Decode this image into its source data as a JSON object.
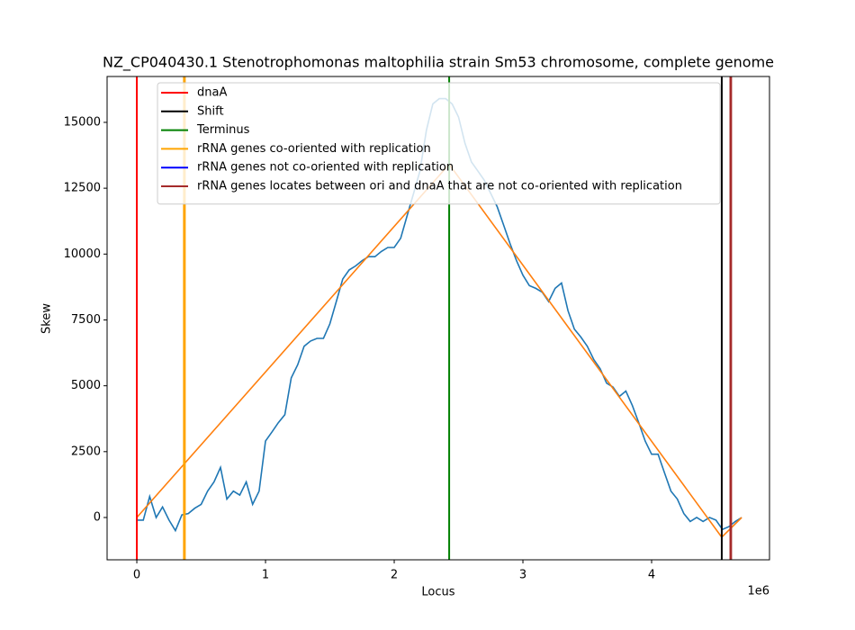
{
  "chart_data": {
    "type": "line",
    "title": "NZ_CP040430.1 Stenotrophomonas maltophilia strain Sm53 chromosome, complete genome",
    "xlabel": "Locus",
    "ylabel": "Skew",
    "x_offset_label": "1e6",
    "xlim": [
      -231000,
      4916000
    ],
    "ylim": [
      -1606,
      16741
    ],
    "xticks": [
      0,
      {
        "value": 1000000,
        "label": "1"
      },
      {
        "value": 2000000,
        "label": "2"
      },
      {
        "value": 3000000,
        "label": "3"
      },
      {
        "value": 4000000,
        "label": "4"
      }
    ],
    "yticks": [
      0,
      2500,
      5000,
      7500,
      10000,
      12500,
      15000
    ],
    "legend": "upper left",
    "lines": [
      {
        "color": "#1f77b4",
        "x": [
          0,
          50000,
          100000,
          150000,
          200000,
          250000,
          300000,
          350000,
          400000,
          450000,
          500000,
          550000,
          600000,
          650000,
          700000,
          750000,
          800000,
          850000,
          900000,
          950000,
          1000000,
          1050000,
          1100000,
          1150000,
          1200000,
          1250000,
          1300000,
          1350000,
          1400000,
          1450000,
          1500000,
          1550000,
          1600000,
          1650000,
          1700000,
          1750000,
          1800000,
          1850000,
          1900000,
          1950000,
          2000000,
          2050000,
          2100000,
          2150000,
          2200000,
          2250000,
          2300000,
          2350000,
          2400000,
          2450000,
          2500000,
          2550000,
          2600000,
          2650000,
          2700000,
          2750000,
          2800000,
          2850000,
          2900000,
          2950000,
          3000000,
          3050000,
          3100000,
          3150000,
          3200000,
          3250000,
          3300000,
          3350000,
          3400000,
          3450000,
          3500000,
          3550000,
          3600000,
          3650000,
          3700000,
          3750000,
          3800000,
          3850000,
          3900000,
          3950000,
          4000000,
          4050000,
          4100000,
          4150000,
          4200000,
          4250000,
          4300000,
          4350000,
          4400000,
          4450000,
          4500000,
          4550000,
          4600000,
          4650000,
          4700000
        ],
        "values": [
          -100,
          -100,
          800,
          0,
          400,
          -100,
          -500,
          100,
          150,
          350,
          500,
          1000,
          1350,
          1900,
          700,
          1000,
          850,
          1350,
          500,
          1000,
          2900,
          3250,
          3600,
          3900,
          5300,
          5800,
          6500,
          6700,
          6800,
          6800,
          7350,
          8200,
          9050,
          9400,
          9550,
          9750,
          9900,
          9900,
          10100,
          10250,
          10250,
          10600,
          11450,
          12300,
          13150,
          14700,
          15700,
          15900,
          15900,
          15700,
          15200,
          14200,
          13500,
          13150,
          12800,
          12300,
          11800,
          11100,
          10400,
          9750,
          9200,
          8800,
          8700,
          8550,
          8200,
          8700,
          8900,
          7850,
          7150,
          6850,
          6500,
          6000,
          5650,
          5100,
          4950,
          4600,
          4800,
          4250,
          3600,
          2900,
          2400,
          2400,
          1700,
          1000,
          700,
          150,
          -150,
          0,
          -150,
          0,
          -100,
          -450,
          -350,
          -150,
          0
        ]
      },
      {
        "color": "#ff7f0e",
        "x": [
          0,
          2427000,
          4545000,
          4700000
        ],
        "values": [
          0,
          13410,
          -750,
          0
        ]
      }
    ],
    "vlines": [
      {
        "name": "dnaA",
        "color": "#ff0000",
        "x": [
          0
        ]
      },
      {
        "name": "Shift",
        "color": "#000000",
        "x": [
          4545000
        ]
      },
      {
        "name": "Terminus",
        "color": "#008000",
        "x": [
          2427000
        ]
      },
      {
        "name": "rRNA genes co-oriented with replication",
        "color": "#ffa500",
        "x": [
          366000,
          373000
        ]
      },
      {
        "name": "rRNA genes not co-oriented with replication",
        "color": "#0000ff",
        "x": []
      },
      {
        "name": "rRNA genes locates between ori and dnaA that are not co-oriented with replication",
        "color": "#a52a2a",
        "x": [
          4612000,
          4618000
        ]
      }
    ]
  }
}
